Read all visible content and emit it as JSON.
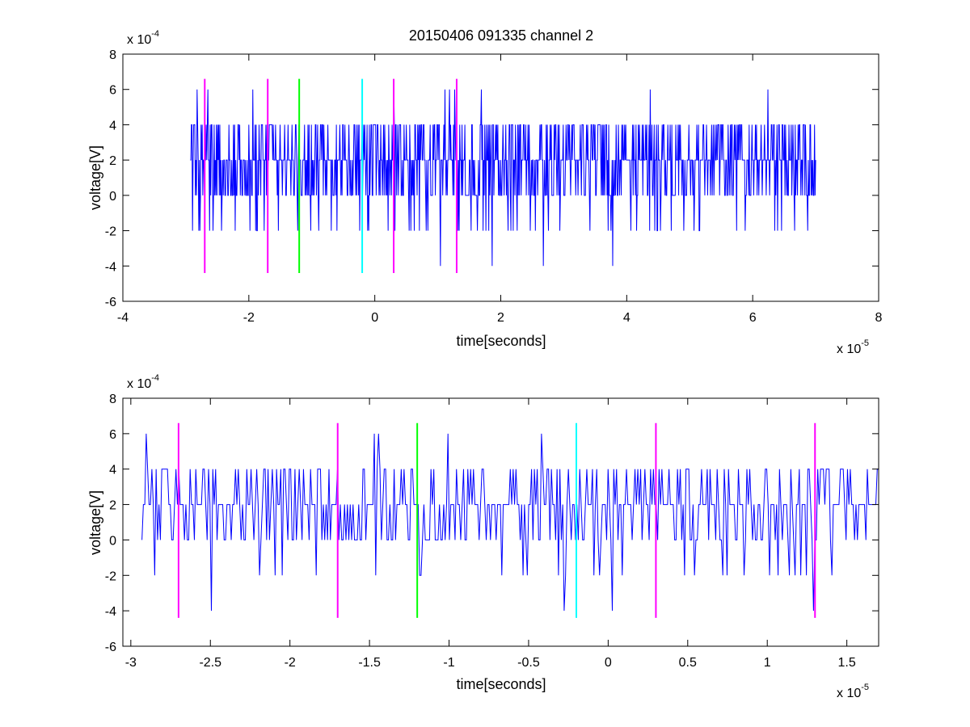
{
  "chart_data": [
    {
      "type": "line",
      "title": "20150406 091335 channel 2",
      "xlabel": "time[seconds]",
      "ylabel": "voltage[V]",
      "x_scale_label": "x 10",
      "x_scale_exp": "-5",
      "y_scale_label": "x 10",
      "y_scale_exp": "-4",
      "x_scale": 1e-05,
      "y_scale": 0.0001,
      "xlim": [
        -4,
        8
      ],
      "ylim": [
        -6,
        8
      ],
      "xticks": [
        "-4",
        "-2",
        "0",
        "2",
        "4",
        "6",
        "8"
      ],
      "yticks": [
        "-6",
        "-4",
        "-2",
        "0",
        "2",
        "4",
        "6",
        "8"
      ],
      "grid": false,
      "signal": {
        "color": "#0000ff",
        "x_range": [
          -2.93,
          7.0
        ],
        "levels": [
          -2,
          0,
          2,
          4,
          6
        ],
        "description_x_units": "1e-5 s",
        "description_y_units": "1e-4 V"
      },
      "markers": [
        {
          "x": -2.7,
          "y0": -4.4,
          "y1": 6.6,
          "color": "#ff00ff"
        },
        {
          "x": -1.7,
          "y0": -4.4,
          "y1": 6.6,
          "color": "#ff00ff"
        },
        {
          "x": -1.2,
          "y0": -4.4,
          "y1": 6.6,
          "color": "#00ff00"
        },
        {
          "x": -0.2,
          "y0": -4.4,
          "y1": 6.6,
          "color": "#00ffff"
        },
        {
          "x": 0.3,
          "y0": -4.4,
          "y1": 6.6,
          "color": "#ff00ff"
        },
        {
          "x": 1.3,
          "y0": -4.4,
          "y1": 6.6,
          "color": "#ff00ff"
        }
      ]
    },
    {
      "type": "line",
      "title": "",
      "xlabel": "time[seconds]",
      "ylabel": "voltage[V]",
      "x_scale_label": "x 10",
      "x_scale_exp": "-5",
      "y_scale_label": "x 10",
      "y_scale_exp": "-4",
      "x_scale": 1e-05,
      "y_scale": 0.0001,
      "xlim": [
        -3.05,
        1.7
      ],
      "ylim": [
        -6,
        8
      ],
      "xticks": [
        "-3",
        "-2.5",
        "-2",
        "-1.5",
        "-1",
        "-0.5",
        "0",
        "0.5",
        "1",
        "1.5"
      ],
      "xtick_values": [
        -3,
        -2.5,
        -2,
        -1.5,
        -1,
        -0.5,
        0,
        0.5,
        1,
        1.5
      ],
      "yticks": [
        "-6",
        "-4",
        "-2",
        "0",
        "2",
        "4",
        "6",
        "8"
      ],
      "grid": false,
      "signal": {
        "color": "#0000ff",
        "x_range": [
          -2.93,
          1.7
        ],
        "levels": [
          -2,
          0,
          2,
          4,
          6
        ]
      },
      "markers": [
        {
          "x": -2.7,
          "y0": -4.4,
          "y1": 6.6,
          "color": "#ff00ff"
        },
        {
          "x": -1.7,
          "y0": -4.4,
          "y1": 6.6,
          "color": "#ff00ff"
        },
        {
          "x": -1.2,
          "y0": -4.4,
          "y1": 6.6,
          "color": "#00ff00"
        },
        {
          "x": -0.2,
          "y0": -4.4,
          "y1": 6.6,
          "color": "#00ffff"
        },
        {
          "x": 0.3,
          "y0": -4.4,
          "y1": 6.6,
          "color": "#ff00ff"
        },
        {
          "x": 1.3,
          "y0": -4.4,
          "y1": 6.6,
          "color": "#ff00ff"
        }
      ]
    }
  ]
}
